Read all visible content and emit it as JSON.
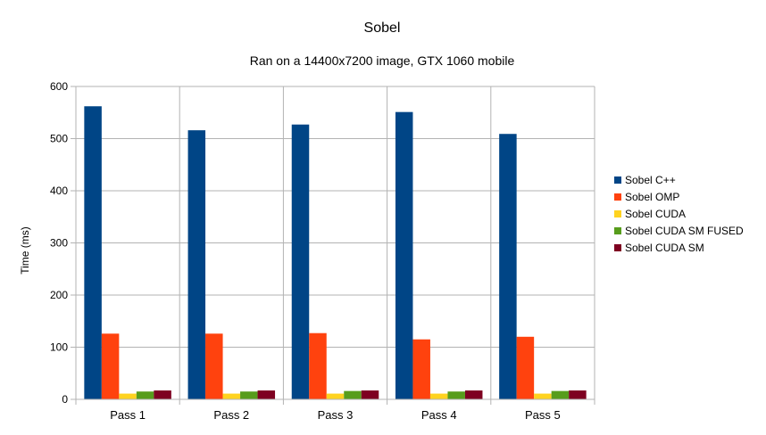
{
  "chart_data": {
    "type": "bar",
    "title": "Sobel",
    "subtitle": "Ran on a 14400x7200 image, GTX 1060 mobile",
    "xlabel": "",
    "ylabel": "Time (ms)",
    "ylim": [
      0,
      600
    ],
    "yticks": [
      0,
      100,
      200,
      300,
      400,
      500,
      600
    ],
    "grid": true,
    "legend_position": "right",
    "categories": [
      "Pass 1",
      "Pass 2",
      "Pass 3",
      "Pass 4",
      "Pass 5"
    ],
    "series": [
      {
        "name": "Sobel C++",
        "color": "#004586",
        "values": [
          562,
          516,
          527,
          551,
          509
        ]
      },
      {
        "name": "Sobel OMP",
        "color": "#ff420e",
        "values": [
          126,
          126,
          127,
          115,
          120
        ]
      },
      {
        "name": "Sobel CUDA",
        "color": "#ffd320",
        "values": [
          11,
          11,
          11,
          11,
          11
        ]
      },
      {
        "name": "Sobel CUDA SM FUSED",
        "color": "#579d1c",
        "values": [
          15,
          15,
          16,
          15,
          16
        ]
      },
      {
        "name": "Sobel CUDA SM",
        "color": "#7e0021",
        "values": [
          17,
          17,
          17,
          17,
          17
        ]
      }
    ]
  }
}
